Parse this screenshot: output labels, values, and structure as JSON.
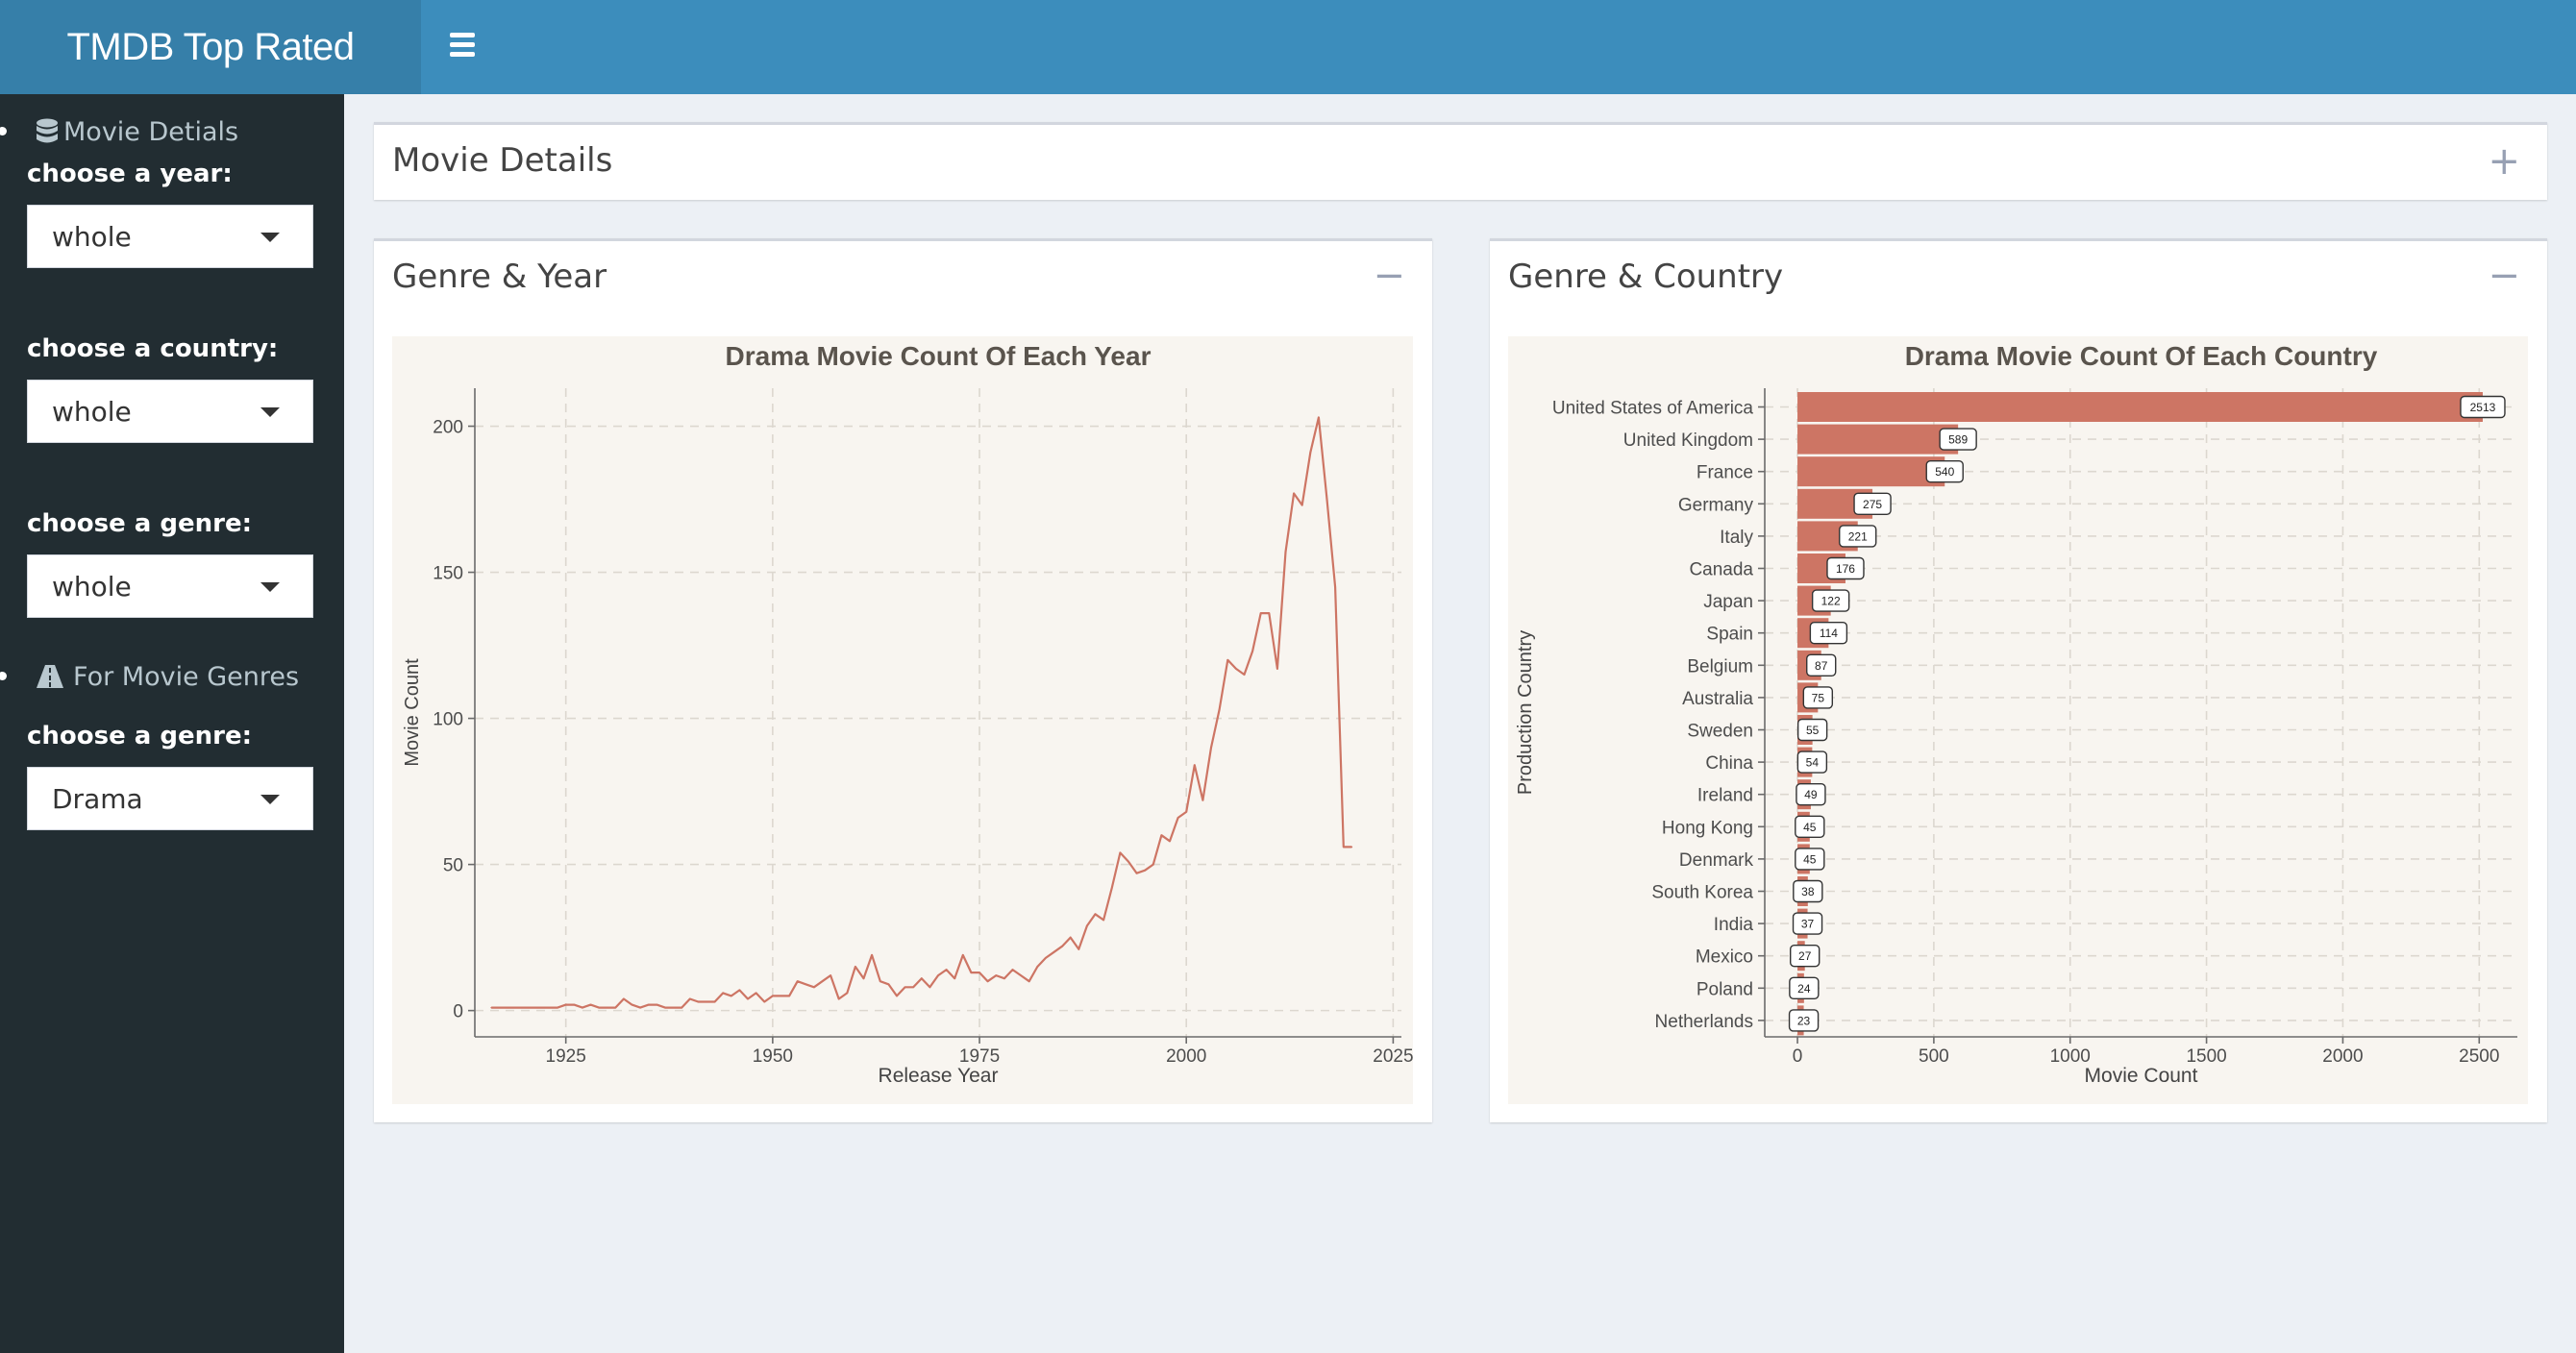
{
  "header": {
    "title": "TMDB Top Rated"
  },
  "sidebar": {
    "menu1": {
      "label": "Movie Detials",
      "icon": "database-icon"
    },
    "year_label": "choose a year:",
    "year_value": "whole",
    "country_label": "choose a country:",
    "country_value": "whole",
    "genre_label": "choose a genre:",
    "genre_value": "whole",
    "menu2": {
      "label": "For Movie Genres",
      "icon": "road-icon"
    },
    "genre2_label": "choose a genre:",
    "genre2_value": "Drama"
  },
  "boxes": {
    "details": {
      "title": "Movie Details",
      "tool": "+"
    },
    "genre_year": {
      "title": "Genre & Year",
      "tool": "−"
    },
    "genre_country": {
      "title": "Genre & Country",
      "tool": "−"
    }
  },
  "colors": {
    "accent": "#3c8dbc",
    "logo": "#367fa9",
    "sidebar": "#222d32",
    "series": "#cd7564",
    "panel": "#f8f5f0"
  },
  "chart_data": [
    {
      "type": "line",
      "title": "Drama Movie Count Of Each Year",
      "xlabel": "Release Year",
      "ylabel": "Movie Count",
      "xlim": [
        1914,
        2026
      ],
      "ylim": [
        -9,
        213
      ],
      "xticks": [
        1925,
        1950,
        1975,
        2000,
        2025
      ],
      "yticks": [
        0,
        50,
        100,
        150,
        200
      ],
      "grid": true,
      "x": [
        1916,
        1918,
        1920,
        1922,
        1924,
        1925,
        1926,
        1927,
        1928,
        1929,
        1930,
        1931,
        1932,
        1933,
        1934,
        1935,
        1936,
        1937,
        1938,
        1939,
        1940,
        1941,
        1942,
        1943,
        1944,
        1945,
        1946,
        1947,
        1948,
        1949,
        1950,
        1951,
        1952,
        1953,
        1954,
        1955,
        1956,
        1957,
        1958,
        1959,
        1960,
        1961,
        1962,
        1963,
        1964,
        1965,
        1966,
        1967,
        1968,
        1969,
        1970,
        1971,
        1972,
        1973,
        1974,
        1975,
        1976,
        1977,
        1978,
        1979,
        1980,
        1981,
        1982,
        1983,
        1984,
        1985,
        1986,
        1987,
        1988,
        1989,
        1990,
        1991,
        1992,
        1993,
        1994,
        1995,
        1996,
        1997,
        1998,
        1999,
        2000,
        2001,
        2002,
        2003,
        2004,
        2005,
        2006,
        2007,
        2008,
        2009,
        2010,
        2011,
        2012,
        2013,
        2014,
        2015,
        2016,
        2017,
        2018,
        2019,
        2020
      ],
      "y": [
        1,
        1,
        1,
        1,
        1,
        2,
        2,
        1,
        2,
        1,
        1,
        1,
        4,
        2,
        1,
        2,
        2,
        1,
        1,
        1,
        4,
        3,
        3,
        3,
        6,
        5,
        7,
        4,
        6,
        3,
        5,
        5,
        5,
        10,
        9,
        8,
        10,
        12,
        4,
        6,
        15,
        11,
        19,
        10,
        9,
        5,
        8,
        8,
        11,
        8,
        12,
        14,
        11,
        19,
        13,
        13,
        10,
        12,
        11,
        14,
        12,
        10,
        15,
        18,
        20,
        22,
        25,
        21,
        29,
        33,
        31,
        42,
        54,
        51,
        47,
        48,
        50,
        60,
        58,
        66,
        68,
        84,
        72,
        90,
        103,
        120,
        117,
        115,
        123,
        136,
        136,
        117,
        157,
        177,
        173,
        191,
        203,
        175,
        145,
        56,
        56
      ]
    },
    {
      "type": "bar",
      "title": "Drama Movie Count Of Each Country",
      "xlabel": "Movie Count",
      "ylabel": "Production Country",
      "xlim": [
        -120,
        2640
      ],
      "xticks": [
        0,
        500,
        1000,
        1500,
        2000,
        2500
      ],
      "grid": true,
      "categories": [
        "United States of America",
        "United Kingdom",
        "France",
        "Germany",
        "Italy",
        "Canada",
        "Japan",
        "Spain",
        "Belgium",
        "Australia",
        "Sweden",
        "China",
        "Ireland",
        "Hong Kong",
        "Denmark",
        "South Korea",
        "India",
        "Mexico",
        "Poland",
        "Netherlands"
      ],
      "values": [
        2513,
        589,
        540,
        275,
        221,
        176,
        122,
        114,
        87,
        75,
        55,
        54,
        49,
        45,
        45,
        38,
        37,
        27,
        24,
        23
      ]
    }
  ]
}
